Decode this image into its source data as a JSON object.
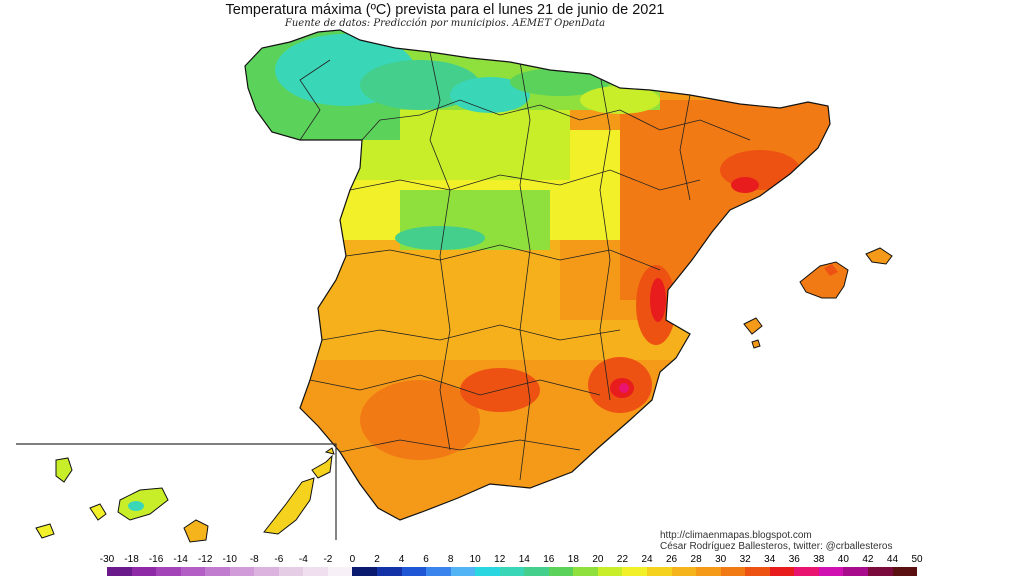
{
  "title": "Temperatura máxima (ºC) prevista para el lunes 21 de junio de 2021",
  "subtitle": "Fuente de datos: Predicción por municipios. AEMET OpenData",
  "credits": {
    "website": "http://climaenmapas.blogspot.com",
    "author": "César Rodríguez Ballesteros, twitter: @crballesteros"
  },
  "legend": {
    "labels": [
      "-30",
      "-18",
      "-16",
      "-14",
      "-12",
      "-10",
      "-8",
      "-6",
      "-4",
      "-2",
      "0",
      "2",
      "4",
      "6",
      "8",
      "10",
      "12",
      "14",
      "16",
      "18",
      "20",
      "22",
      "24",
      "26",
      "28",
      "30",
      "32",
      "34",
      "36",
      "38",
      "40",
      "42",
      "44",
      "50"
    ],
    "colors": [
      "#6a1a8a",
      "#8e2aa6",
      "#a344b8",
      "#b25ec4",
      "#c27ccf",
      "#d19ad8",
      "#dcb3df",
      "#e6cde6",
      "#efdfef",
      "#f7f1f7",
      "#0a1a6e",
      "#1432a8",
      "#1e56d6",
      "#3a84ee",
      "#52b4f4",
      "#2ad6e0",
      "#3ad6b8",
      "#44cf8c",
      "#5bd25a",
      "#8fe03c",
      "#c8ee2a",
      "#f2f028",
      "#f5d21e",
      "#f6b41c",
      "#f59a18",
      "#f27a14",
      "#ee5212",
      "#e81c1c",
      "#e81470",
      "#d010b0",
      "#a80c8c",
      "#7a0a3c",
      "#5a1010"
    ]
  },
  "map": {
    "inset_region": "Islas Canarias"
  }
}
